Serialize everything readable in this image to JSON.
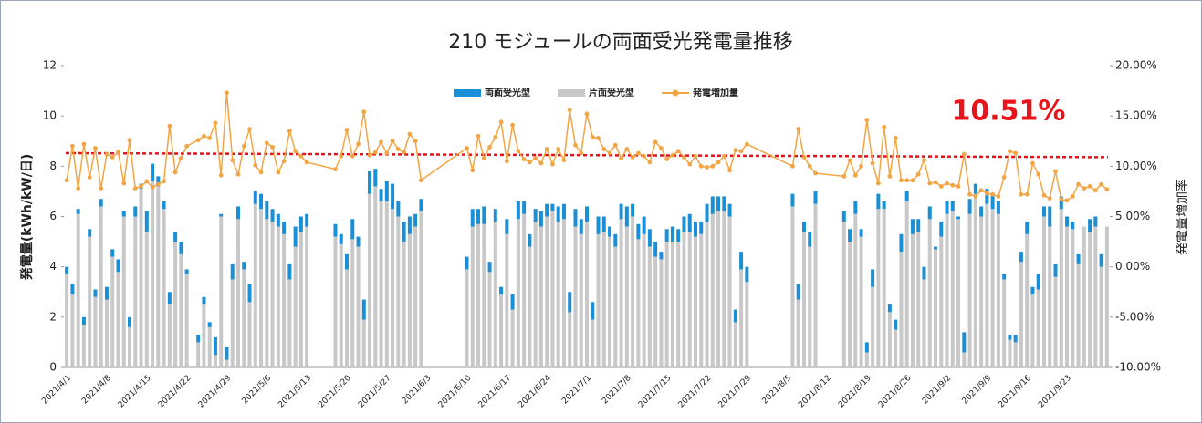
{
  "chart_data": {
    "type": "bar_line",
    "title": "210 モジュールの両面受光発電量推移",
    "annotation": "10.51%",
    "annotation_color": "#e8141c",
    "y_label": "発電量(kWh/kW/日)",
    "y2_label": "発電量増加率",
    "stacked": true,
    "legend": "top",
    "ylim": [
      0,
      12
    ],
    "yticks": [
      0,
      2,
      4,
      6,
      8,
      10,
      12
    ],
    "y2lim": [
      -10,
      20
    ],
    "y2ticks": [
      {
        "value": -10,
        "label": "-10.00%"
      },
      {
        "value": -5,
        "label": "-5.00%"
      },
      {
        "value": 0,
        "label": "0.00%"
      },
      {
        "value": 5,
        "label": "5.00%"
      },
      {
        "value": 10,
        "label": "10.00%"
      },
      {
        "value": 15,
        "label": "15.00%"
      },
      {
        "value": 20,
        "label": "20.00%"
      }
    ],
    "categories": [
      "2021/4/1",
      null,
      null,
      null,
      null,
      null,
      null,
      "2021/4/8",
      null,
      null,
      null,
      null,
      null,
      null,
      "2021/4/15",
      null,
      null,
      null,
      null,
      null,
      null,
      "2021/4/22",
      null,
      null,
      null,
      null,
      null,
      null,
      "2021/4/29",
      null,
      null,
      null,
      null,
      null,
      null,
      "2021/5/6",
      null,
      null,
      null,
      null,
      null,
      null,
      "2021/5/13",
      null,
      null,
      null,
      null,
      null,
      null,
      "2021/5/20",
      null,
      null,
      null,
      null,
      null,
      null,
      "2021/5/27",
      null,
      null,
      null,
      null,
      null,
      null,
      "2021/6/3",
      null,
      null,
      null,
      null,
      null,
      null,
      "2021/6/10",
      null,
      null,
      null,
      null,
      null,
      null,
      "2021/6/17",
      null,
      null,
      null,
      null,
      null,
      null,
      "2021/6/24",
      null,
      null,
      null,
      null,
      null,
      null,
      "2021/7/1",
      null,
      null,
      null,
      null,
      null,
      null,
      "2021/7/8",
      null,
      null,
      null,
      null,
      null,
      null,
      "2021/7/15",
      null,
      null,
      null,
      null,
      null,
      null,
      "2021/7/22",
      null,
      null,
      null,
      null,
      null,
      null,
      "2021/7/29",
      null,
      null,
      null,
      null,
      null,
      null,
      "2021/8/5",
      null,
      null,
      null,
      null,
      null,
      null,
      "2021/8/12",
      null,
      null,
      null,
      null,
      null,
      null,
      "2021/8/19",
      null,
      null,
      null,
      null,
      null,
      null,
      "2021/8/26",
      null,
      null,
      null,
      null,
      null,
      null,
      "2021/9/2",
      null,
      null,
      null,
      null,
      null,
      null,
      "2021/9/9",
      null,
      null,
      null,
      null,
      null,
      null,
      "2021/9/16",
      null,
      null,
      null,
      null,
      null,
      null,
      "2021/9/23",
      null,
      null,
      null,
      null,
      null,
      null,
      null
    ],
    "series": [
      {
        "name": "両面受光型",
        "color": "#1a8fd6",
        "values": [
          0.3,
          0.4,
          0.2,
          0.3,
          0.3,
          0.3,
          0.3,
          0.5,
          0.3,
          0.5,
          0.2,
          0.4,
          0.4,
          0.2,
          0.8,
          0.7,
          0.4,
          0.3,
          0.5,
          0.4,
          0.5,
          0.2,
          null,
          0.3,
          0.3,
          0.2,
          0.7,
          0.1,
          0.5,
          0.6,
          0.5,
          0.3,
          0.7,
          0.5,
          0.6,
          0.7,
          0.5,
          0.5,
          0.5,
          0.6,
          0.8,
          0.6,
          0.5,
          null,
          null,
          null,
          null,
          0.5,
          0.4,
          0.6,
          0.8,
          0.4,
          0.8,
          0.9,
          0.7,
          0.5,
          0.8,
          1.0,
          0.6,
          0.8,
          0.7,
          0.5,
          0.5,
          null,
          null,
          null,
          null,
          null,
          null,
          null,
          0.5,
          0.7,
          0.6,
          0.7,
          0.4,
          0.5,
          0.3,
          0.6,
          0.6,
          0.7,
          0.5,
          0.5,
          0.5,
          0.6,
          0.5,
          0.3,
          0.6,
          0.6,
          0.8,
          0.7,
          0.6,
          0.6,
          0.7,
          0.7,
          0.6,
          0.4,
          0.5,
          0.6,
          0.8,
          0.5,
          0.6,
          0.7,
          0.7,
          0.6,
          0.3,
          0.5,
          0.6,
          0.5,
          0.6,
          0.7,
          0.6,
          0.5,
          0.7,
          0.7,
          0.6,
          0.6,
          0.5,
          0.5,
          0.7,
          0.6,
          null,
          null,
          null,
          null,
          null,
          null,
          null,
          0.5,
          0.6,
          0.4,
          0.6,
          0.5,
          null,
          null,
          null,
          null,
          0.4,
          0.5,
          0.5,
          0.3,
          0.4,
          0.7,
          0.6,
          0.3,
          0.3,
          0.4,
          0.7,
          0.4,
          0.6,
          0.5,
          0.5,
          0.5,
          0.1,
          0.6,
          0.5,
          0.4,
          0.1,
          0.8,
          0.6,
          0.4,
          0.4,
          0.6,
          0.6,
          0.5,
          0.2,
          0.2,
          0.3,
          0.4,
          0.5,
          0.3,
          0.6,
          0.4,
          0.8,
          0.5,
          0.5,
          0.4,
          0.3,
          0.4,
          0,
          0.5,
          0.4,
          0.5,
          0
        ]
      },
      {
        "name": "片面受光型",
        "color": "#c8c8c8",
        "values": [
          3.7,
          2.9,
          6.1,
          1.7,
          5.2,
          2.8,
          6.4,
          2.7,
          4.4,
          3.8,
          6.0,
          1.6,
          6.0,
          7.1,
          5.4,
          7.4,
          7.2,
          6.3,
          2.5,
          5.0,
          4.5,
          3.7,
          null,
          1.0,
          2.5,
          1.6,
          0.5,
          6.0,
          0.3,
          3.5,
          5.9,
          3.9,
          2.6,
          6.5,
          6.3,
          5.9,
          5.8,
          5.6,
          5.3,
          3.5,
          4.8,
          5.4,
          5.6,
          null,
          null,
          null,
          null,
          5.2,
          4.9,
          3.9,
          5.1,
          4.8,
          1.9,
          6.9,
          7.2,
          6.6,
          6.6,
          6.3,
          6.0,
          5.0,
          5.3,
          5.6,
          6.2,
          null,
          null,
          null,
          null,
          null,
          null,
          null,
          3.9,
          5.6,
          5.7,
          5.7,
          3.8,
          5.8,
          2.9,
          5.3,
          2.3,
          5.9,
          6.1,
          4.8,
          5.8,
          5.6,
          6.0,
          6.2,
          5.8,
          5.9,
          2.2,
          5.6,
          5.3,
          5.8,
          1.9,
          5.3,
          5.4,
          5.2,
          4.8,
          5.9,
          5.6,
          6.0,
          5.1,
          5.3,
          4.8,
          4.4,
          4.3,
          5.0,
          5.0,
          5.0,
          5.4,
          5.4,
          5.2,
          5.3,
          5.8,
          6.1,
          6.2,
          6.2,
          6.0,
          1.8,
          3.9,
          3.4,
          null,
          null,
          null,
          null,
          null,
          null,
          null,
          6.4,
          2.7,
          5.4,
          4.8,
          6.5,
          null,
          null,
          null,
          null,
          5.8,
          5.0,
          6.1,
          5.2,
          0.6,
          3.2,
          6.3,
          6.3,
          2.2,
          1.5,
          4.6,
          6.6,
          5.3,
          5.4,
          3.5,
          5.9,
          4.7,
          5.2,
          6.1,
          6.2,
          5.9,
          0.6,
          6.1,
          6.9,
          6.0,
          6.5,
          6.3,
          6.1,
          3.5,
          1.1,
          1.0,
          4.2,
          5.3,
          2.9,
          3.1,
          6.0,
          5.6,
          3.6,
          6.3,
          5.6,
          5.5,
          4.1,
          5.6,
          5.4,
          5.6,
          4.0,
          5.6
        ]
      },
      {
        "name": "発電増加量",
        "color": "#f2a545",
        "axis": "y2",
        "values": [
          8.6,
          12.0,
          7.8,
          12.2,
          8.9,
          11.8,
          7.8,
          11.2,
          10.9,
          11.4,
          8.3,
          12.6,
          7.8,
          8.0,
          8.5,
          7.9,
          8.2,
          8.5,
          14.0,
          9.4,
          10.8,
          12.0,
          null,
          12.6,
          13.0,
          12.8,
          14.3,
          9.1,
          17.3,
          10.6,
          9.2,
          12.0,
          13.7,
          10.1,
          9.4,
          12.3,
          11.9,
          9.4,
          10.5,
          13.5,
          11.5,
          11.0,
          10.4,
          null,
          null,
          null,
          null,
          9.7,
          11.0,
          13.6,
          11.0,
          12.2,
          15.4,
          11.1,
          11.4,
          12.4,
          11.3,
          12.5,
          11.7,
          11.4,
          13.2,
          12.5,
          8.6,
          null,
          null,
          null,
          null,
          null,
          null,
          null,
          11.8,
          9.6,
          13.0,
          10.8,
          11.9,
          12.9,
          14.4,
          10.5,
          14.1,
          11.5,
          10.7,
          10.4,
          10.8,
          10.3,
          11.7,
          10.2,
          11.7,
          10.6,
          15.6,
          12.1,
          11.3,
          15.2,
          12.9,
          12.8,
          11.7,
          11.3,
          12.1,
          10.8,
          11.7,
          10.9,
          11.3,
          11.0,
          10.4,
          12.4,
          11.8,
          10.7,
          11.1,
          11.5,
          10.9,
          10.2,
          11.0,
          10.0,
          9.9,
          10.0,
          10.4,
          11.0,
          9.6,
          11.6,
          11.5,
          12.2,
          null,
          null,
          null,
          null,
          null,
          null,
          null,
          10.0,
          13.7,
          10.9,
          10.0,
          9.3,
          null,
          null,
          null,
          null,
          9.0,
          10.6,
          9.1,
          10.0,
          14.6,
          10.3,
          8.3,
          13.9,
          9.0,
          12.8,
          8.6,
          8.6,
          8.6,
          9.2,
          10.6,
          8.3,
          8.4,
          8.0,
          8.3,
          8.1,
          8.0,
          11.2,
          7.2,
          7.0,
          7.6,
          7.3,
          7.2,
          7.0,
          8.9,
          11.5,
          11.3,
          7.2,
          7.2,
          10.3,
          9.2,
          7.1,
          6.8,
          9.5,
          6.7,
          6.6,
          7.0,
          8.2,
          7.8,
          8.0,
          7.6,
          8.2,
          7.7
        ]
      }
    ],
    "trendline": {
      "color": "#e0141c",
      "values": [
        11.3,
        10.9
      ]
    }
  }
}
